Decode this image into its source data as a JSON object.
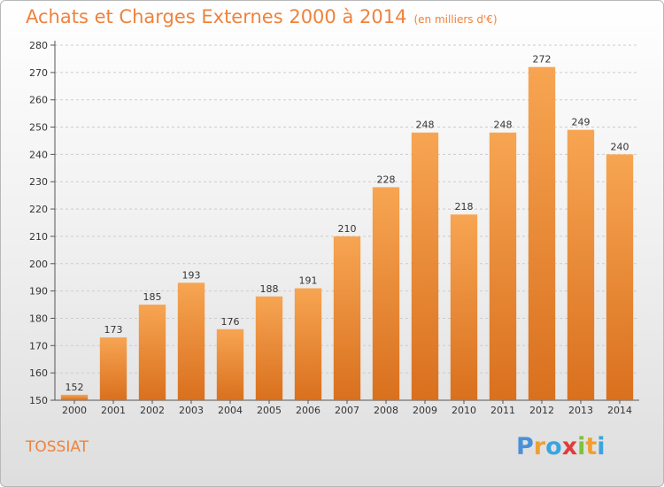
{
  "header": {
    "title": "Achats et Charges Externes 2000 à 2014",
    "subtitle": "(en milliers d'€)"
  },
  "footer": {
    "city": "TOSSIAT",
    "logo": {
      "letters": [
        "P",
        "r",
        "o",
        "x",
        "i",
        "t",
        "i"
      ],
      "colors": [
        "#4a90d9",
        "#f0a030",
        "#3aa4e0",
        "#e03c3c",
        "#7cc242",
        "#f0a030",
        "#3aa4e0"
      ]
    }
  },
  "colors": {
    "bar_top": "#f7a552",
    "bar_bottom": "#d9701e",
    "text": "#f0823c"
  },
  "chart_data": {
    "type": "bar",
    "categories": [
      "2000",
      "2001",
      "2002",
      "2003",
      "2004",
      "2005",
      "2006",
      "2007",
      "2008",
      "2009",
      "2010",
      "2011",
      "2012",
      "2013",
      "2014"
    ],
    "values": [
      152,
      173,
      185,
      193,
      176,
      188,
      191,
      210,
      228,
      248,
      218,
      248,
      272,
      249,
      240
    ],
    "ylim": [
      150,
      280
    ],
    "yticks": [
      150,
      160,
      170,
      180,
      190,
      200,
      210,
      220,
      230,
      240,
      250,
      260,
      270,
      280
    ],
    "grid": "horizontal dashed",
    "title": "Achats et Charges Externes 2000 à 2014",
    "subtitle": "(en milliers d'€)"
  }
}
